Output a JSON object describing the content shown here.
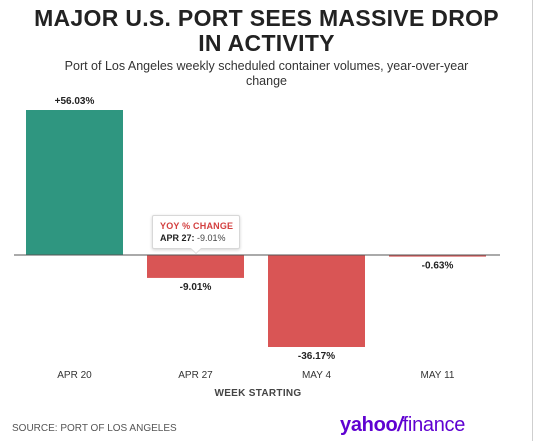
{
  "header": {
    "title_line1": "MAJOR U.S. PORT SEES MASSIVE DROP",
    "title_line2": "IN ACTIVITY",
    "subtitle_line1": "Port of Los Angeles weekly scheduled container volumes, year-over-year",
    "subtitle_line2": "change"
  },
  "chart_data": {
    "type": "bar",
    "categories": [
      "APR 20",
      "APR 27",
      "MAY 4",
      "MAY 11"
    ],
    "values": [
      56.03,
      -9.01,
      -36.17,
      -0.63
    ],
    "data_labels": [
      "+56.03%",
      "-9.01%",
      "-36.17%",
      "-0.63%"
    ],
    "xlabel": "WEEK STARTING",
    "ylabel": "",
    "ylim": [
      -36.17,
      56.03
    ],
    "grid": false,
    "legend": "none",
    "colors": {
      "positive": "#2f9680",
      "negative": "#d95555"
    }
  },
  "tooltip": {
    "title": "YOY % CHANGE",
    "date": "APR 27:",
    "value": "-9.01%"
  },
  "footer": {
    "source": "SOURCE: PORT OF LOS ANGELES",
    "logo_part1": "yahoo",
    "logo_slash": "/",
    "logo_part2": "finance",
    "logo_color": "#5f01d1"
  }
}
